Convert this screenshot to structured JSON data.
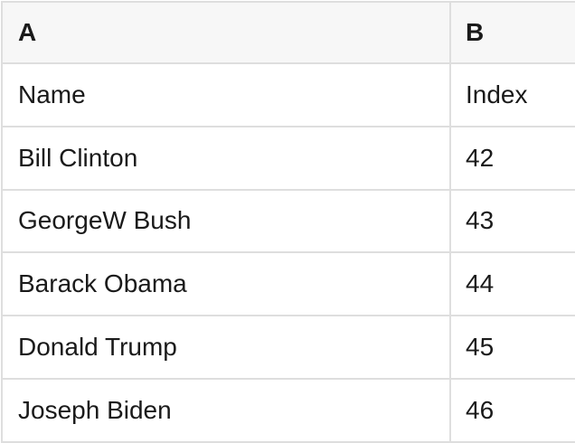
{
  "table": {
    "column_headers": {
      "a": "A",
      "b": "B"
    },
    "rows": [
      {
        "name": "Name",
        "index": "Index"
      },
      {
        "name": "Bill Clinton",
        "index": "42"
      },
      {
        "name": "GeorgeW Bush",
        "index": "43"
      },
      {
        "name": "Barack Obama",
        "index": "44"
      },
      {
        "name": "Donald Trump",
        "index": "45"
      },
      {
        "name": "Joseph Biden",
        "index": "46"
      }
    ]
  },
  "colors": {
    "header_background": "#f7f7f7",
    "row_background": "#ffffff",
    "border": "#dedede",
    "text": "#1a1a1a"
  }
}
